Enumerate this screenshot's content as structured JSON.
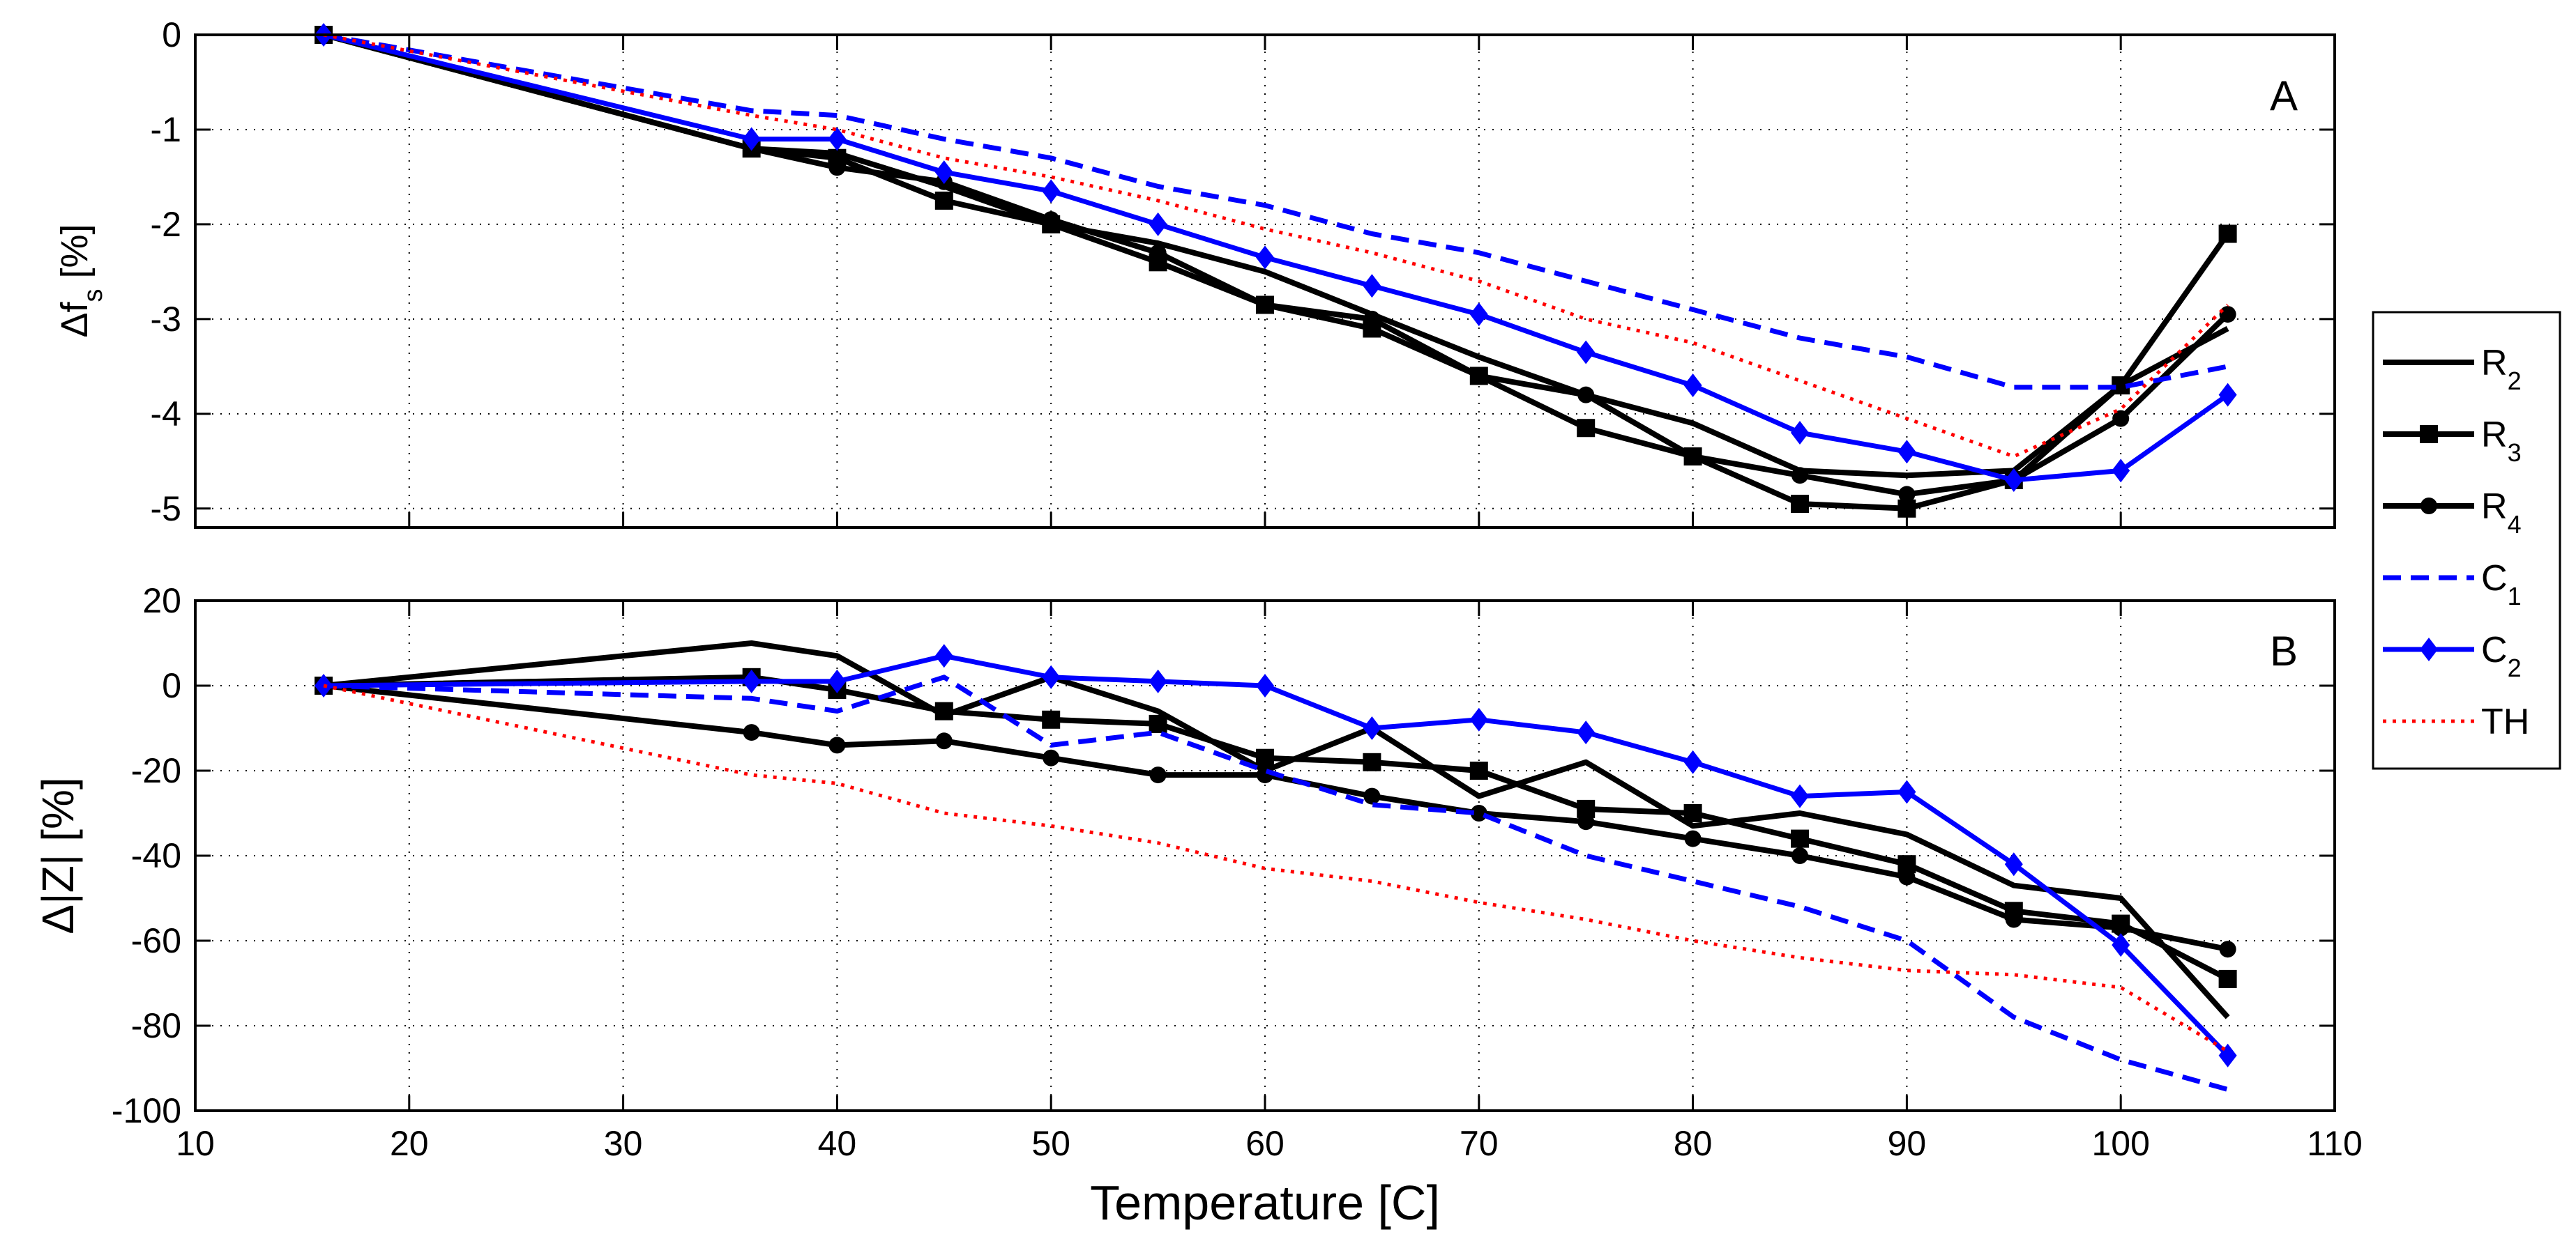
{
  "chart_data": [
    {
      "type": "line",
      "panel": "A",
      "ylabel": "Δf",
      "ylabel_sub": "s",
      "ylabel_suffix": " [%]",
      "xlabel": "",
      "xlim": [
        10,
        110
      ],
      "ylim": [
        -5.2,
        0
      ],
      "xticks": [
        10,
        20,
        30,
        40,
        50,
        60,
        70,
        80,
        90,
        100,
        110
      ],
      "yticks": [
        0,
        -1,
        -2,
        -3,
        -4,
        -5
      ],
      "grid": true,
      "series": [
        {
          "name": "R2",
          "color": "#000000",
          "dash": "solid",
          "marker": "none",
          "x": [
            16,
            36,
            40,
            45,
            50,
            55,
            60,
            65,
            70,
            75,
            80,
            85,
            90,
            95,
            100,
            105
          ],
          "y": [
            0,
            -1.2,
            -1.25,
            -1.6,
            -2.0,
            -2.2,
            -2.5,
            -2.95,
            -3.4,
            -3.8,
            -4.1,
            -4.6,
            -4.65,
            -4.6,
            -3.7,
            -3.1
          ]
        },
        {
          "name": "R3",
          "color": "#000000",
          "dash": "solid",
          "marker": "square",
          "x": [
            16,
            36,
            40,
            45,
            50,
            55,
            60,
            65,
            70,
            75,
            80,
            85,
            90,
            95,
            100,
            105
          ],
          "y": [
            0,
            -1.2,
            -1.3,
            -1.75,
            -2.0,
            -2.4,
            -2.85,
            -3.1,
            -3.6,
            -4.15,
            -4.45,
            -4.95,
            -5.0,
            -4.7,
            -3.7,
            -2.1
          ]
        },
        {
          "name": "R4",
          "color": "#000000",
          "dash": "solid",
          "marker": "circle",
          "x": [
            16,
            36,
            40,
            45,
            50,
            55,
            60,
            65,
            70,
            75,
            80,
            85,
            90,
            95,
            100,
            105
          ],
          "y": [
            0,
            -1.2,
            -1.4,
            -1.55,
            -1.95,
            -2.3,
            -2.85,
            -3.0,
            -3.6,
            -3.8,
            -4.45,
            -4.65,
            -4.85,
            -4.7,
            -4.05,
            -2.95
          ]
        },
        {
          "name": "C1",
          "color": "#0000ff",
          "dash": "dashed",
          "marker": "none",
          "x": [
            16,
            36,
            40,
            45,
            50,
            55,
            60,
            65,
            70,
            75,
            80,
            85,
            90,
            95,
            100,
            105
          ],
          "y": [
            0,
            -0.8,
            -0.85,
            -1.1,
            -1.3,
            -1.6,
            -1.8,
            -2.1,
            -2.3,
            -2.6,
            -2.9,
            -3.2,
            -3.4,
            -3.72,
            -3.72,
            -3.5
          ]
        },
        {
          "name": "C2",
          "color": "#0000ff",
          "dash": "solid",
          "marker": "diamond",
          "x": [
            16,
            36,
            40,
            45,
            50,
            55,
            60,
            65,
            70,
            75,
            80,
            85,
            90,
            95,
            100,
            105
          ],
          "y": [
            0,
            -1.1,
            -1.1,
            -1.45,
            -1.65,
            -2.0,
            -2.35,
            -2.65,
            -2.95,
            -3.35,
            -3.7,
            -4.2,
            -4.4,
            -4.7,
            -4.6,
            -3.8
          ]
        },
        {
          "name": "TH",
          "color": "#ff0000",
          "dash": "dotted",
          "marker": "none",
          "x": [
            16,
            36,
            40,
            45,
            50,
            55,
            60,
            65,
            70,
            75,
            80,
            85,
            90,
            95,
            100,
            105
          ],
          "y": [
            0,
            -0.85,
            -1.0,
            -1.3,
            -1.5,
            -1.75,
            -2.05,
            -2.3,
            -2.6,
            -3.0,
            -3.25,
            -3.65,
            -4.05,
            -4.45,
            -3.95,
            -2.85
          ]
        }
      ]
    },
    {
      "type": "line",
      "panel": "B",
      "ylabel": "Δ|Z| [%]",
      "xlabel": "Temperature [C]",
      "xlim": [
        10,
        110
      ],
      "ylim": [
        -100,
        20
      ],
      "xticks": [
        10,
        20,
        30,
        40,
        50,
        60,
        70,
        80,
        90,
        100,
        110
      ],
      "yticks": [
        20,
        0,
        -20,
        -40,
        -60,
        -80,
        -100
      ],
      "grid": true,
      "series": [
        {
          "name": "R2",
          "color": "#000000",
          "dash": "solid",
          "marker": "none",
          "x": [
            16,
            36,
            40,
            45,
            50,
            55,
            60,
            65,
            70,
            75,
            80,
            85,
            90,
            95,
            100,
            105
          ],
          "y": [
            0,
            10,
            7,
            -7,
            2,
            -6,
            -20,
            -10,
            -26,
            -18,
            -33,
            -30,
            -35,
            -47,
            -50,
            -78
          ]
        },
        {
          "name": "R3",
          "color": "#000000",
          "dash": "solid",
          "marker": "square",
          "x": [
            16,
            36,
            40,
            45,
            50,
            55,
            60,
            65,
            70,
            75,
            80,
            85,
            90,
            95,
            100,
            105
          ],
          "y": [
            0,
            2,
            -1,
            -6,
            -8,
            -9,
            -17,
            -18,
            -20,
            -29,
            -30,
            -36,
            -42,
            -53,
            -56,
            -69
          ]
        },
        {
          "name": "R4",
          "color": "#000000",
          "dash": "solid",
          "marker": "circle",
          "x": [
            16,
            36,
            40,
            45,
            50,
            55,
            60,
            65,
            70,
            75,
            80,
            85,
            90,
            95,
            100,
            105
          ],
          "y": [
            0,
            -11,
            -14,
            -13,
            -17,
            -21,
            -21,
            -26,
            -30,
            -32,
            -36,
            -40,
            -45,
            -55,
            -57,
            -62
          ]
        },
        {
          "name": "C1",
          "color": "#0000ff",
          "dash": "dashed",
          "marker": "none",
          "x": [
            16,
            36,
            40,
            45,
            50,
            55,
            60,
            65,
            70,
            75,
            80,
            85,
            90,
            95,
            100,
            105
          ],
          "y": [
            0,
            -3,
            -6,
            2,
            -14,
            -11,
            -20,
            -28,
            -30,
            -40,
            -46,
            -52,
            -60,
            -78,
            -88,
            -95
          ]
        },
        {
          "name": "C2",
          "color": "#0000ff",
          "dash": "solid",
          "marker": "diamond",
          "x": [
            16,
            36,
            40,
            45,
            50,
            55,
            60,
            65,
            70,
            75,
            80,
            85,
            90,
            95,
            100,
            105
          ],
          "y": [
            0,
            1,
            1,
            7,
            2,
            1,
            0,
            -10,
            -8,
            -11,
            -18,
            -26,
            -25,
            -42,
            -61,
            -87
          ]
        },
        {
          "name": "TH",
          "color": "#ff0000",
          "dash": "dotted",
          "marker": "none",
          "x": [
            16,
            36,
            40,
            45,
            50,
            55,
            60,
            65,
            70,
            75,
            80,
            85,
            90,
            95,
            100,
            105
          ],
          "y": [
            0,
            -21,
            -23,
            -30,
            -33,
            -37,
            -43,
            -46,
            -51,
            -55,
            -60,
            -64,
            -67,
            -68,
            -71,
            -86
          ]
        }
      ]
    }
  ],
  "legend": {
    "placement": "right",
    "entries": [
      {
        "base": "R",
        "sub": "2",
        "series": "R2"
      },
      {
        "base": "R",
        "sub": "3",
        "series": "R3"
      },
      {
        "base": "R",
        "sub": "4",
        "series": "R4"
      },
      {
        "base": "C",
        "sub": "1",
        "series": "C1"
      },
      {
        "base": "C",
        "sub": "2",
        "series": "C2"
      },
      {
        "base": "TH",
        "sub": "",
        "series": "TH"
      }
    ]
  }
}
